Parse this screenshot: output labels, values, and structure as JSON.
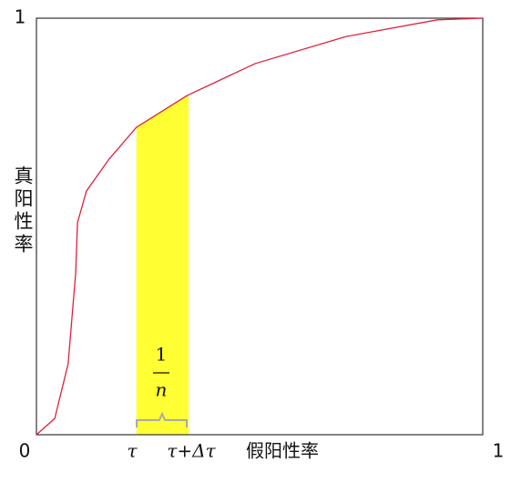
{
  "chart_data": {
    "type": "line",
    "x_label": "假阳性率",
    "y_label": "真阳性率",
    "xlim": [
      0,
      1
    ],
    "ylim": [
      0,
      1
    ],
    "xticks": [
      0,
      1
    ],
    "yticks": [
      1
    ],
    "series": [
      {
        "color": "#e0203a",
        "x": [
          0,
          0.041,
          0.071,
          0.088,
          0.092,
          0.112,
          0.163,
          0.224,
          0.337,
          0.49,
          0.694,
          0.898,
          1
        ],
        "values": [
          0,
          0.039,
          0.17,
          0.389,
          0.509,
          0.585,
          0.662,
          0.738,
          0.814,
          0.891,
          0.956,
          0.996,
          1
        ]
      }
    ],
    "band": [
      0.224,
      0.341
    ],
    "band_color": "#ffff33",
    "annotations": {
      "tau": "τ",
      "tau_plus": "τ+Δτ",
      "numerator": "1",
      "denominator": "n"
    }
  }
}
